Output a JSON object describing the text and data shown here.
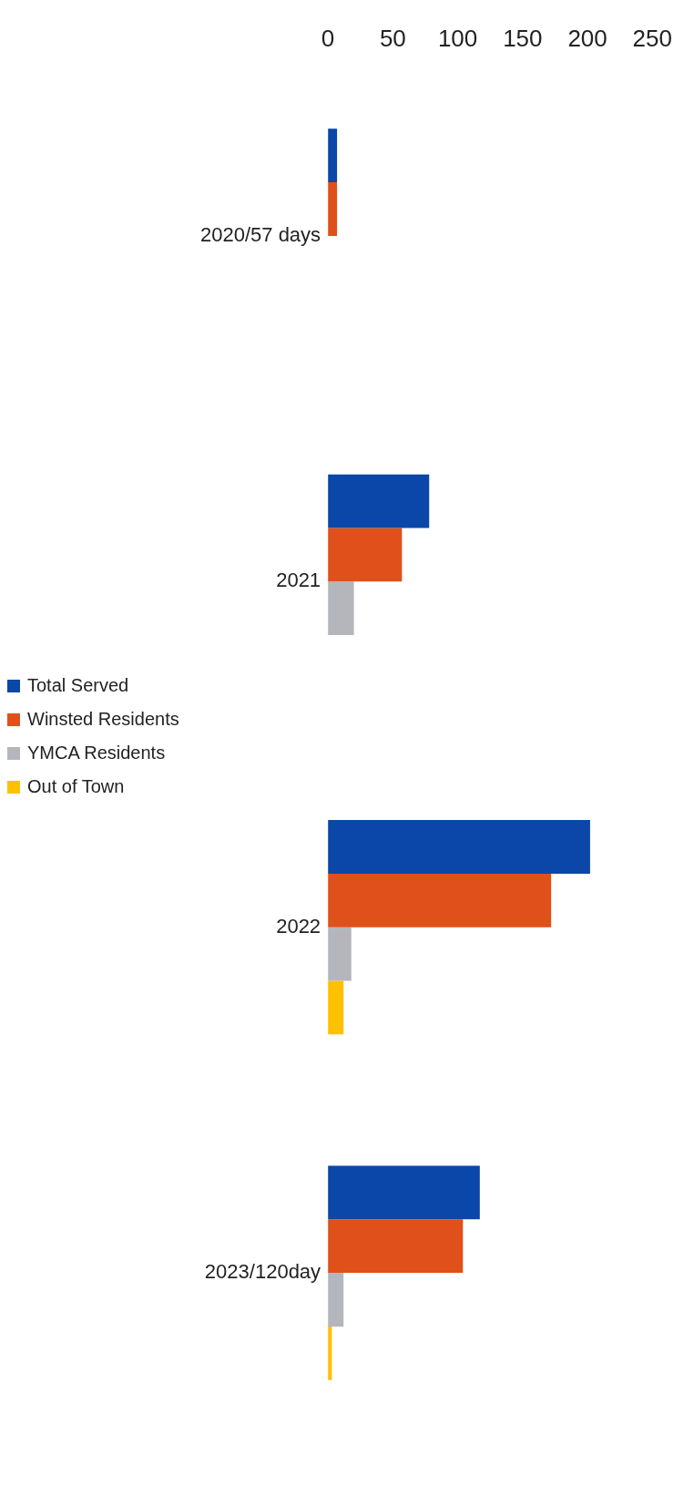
{
  "chart_data": {
    "type": "bar",
    "orientation": "horizontal",
    "categories": [
      "2020/57 days",
      "2021",
      "2022",
      "2023/120day"
    ],
    "series": [
      {
        "name": "Total Served",
        "color": "#0a47a8",
        "values": [
          7,
          78,
          202,
          117
        ]
      },
      {
        "name": "Winsted Residents",
        "color": "#e0501a",
        "values": [
          7,
          57,
          172,
          104
        ]
      },
      {
        "name": "YMCA Residents",
        "color": "#b4b6bc",
        "values": [
          null,
          20,
          18,
          12
        ]
      },
      {
        "name": "Out of Town",
        "color": "#ffc000",
        "values": [
          null,
          0,
          12,
          3
        ]
      }
    ],
    "xlim": [
      0,
      250
    ],
    "xticks": [
      0,
      50,
      100,
      150,
      200,
      250
    ],
    "grid": false,
    "legend": "left"
  }
}
